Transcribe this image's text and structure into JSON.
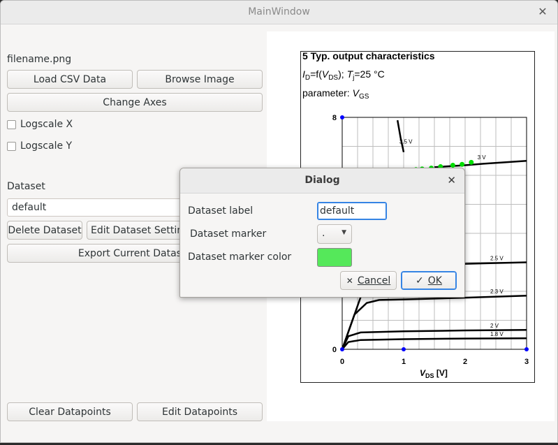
{
  "window": {
    "title": "MainWindow",
    "close_glyph": "✕"
  },
  "left_panel": {
    "filename": "filename.png",
    "load_csv": "Load CSV Data",
    "browse_image": "Browse Image",
    "change_axes": "Change Axes",
    "logscale_x": "Logscale X",
    "logscale_y": "Logscale Y",
    "dataset_label": "Dataset",
    "dataset_value": "default",
    "delete_dataset": "Delete Dataset",
    "edit_dataset_settings": "Edit Dataset Settings",
    "export_current": "Export Current Dataset",
    "clear_datapoints": "Clear Datapoints",
    "edit_datapoints": "Edit Datapoints"
  },
  "figure": {
    "heading": "5 Typ. output characteristics",
    "line2_I": "I",
    "line2_sub_D": "D",
    "line2_mid": "=f(",
    "line2_V": "V",
    "line2_sub_DS": "DS",
    "line2_mid2": "); ",
    "line2_T": "T",
    "line2_sub_j": "j",
    "line2_end": "=25 °C",
    "line3_prefix": "parameter: ",
    "line3_V": "V",
    "line3_sub_GS": "GS",
    "xlabel_V": "V",
    "xlabel_sub": "DS",
    "xlabel_unit": " [V]"
  },
  "chart_data": {
    "type": "line",
    "xlabel": "V DS [V]",
    "ylabel": "",
    "xlim": [
      0,
      3
    ],
    "ylim": [
      0,
      8
    ],
    "x_ticks": [
      "0",
      "1",
      "2",
      "3"
    ],
    "y_ticks": [
      "0",
      "8"
    ],
    "series": [
      {
        "name": "1.8 V",
        "points": [
          [
            0,
            0
          ],
          [
            0.1,
            0.25
          ],
          [
            0.3,
            0.32
          ],
          [
            1,
            0.35
          ],
          [
            2,
            0.37
          ],
          [
            3,
            0.38
          ]
        ]
      },
      {
        "name": "2 V",
        "points": [
          [
            0,
            0
          ],
          [
            0.1,
            0.45
          ],
          [
            0.3,
            0.58
          ],
          [
            1,
            0.62
          ],
          [
            2,
            0.65
          ],
          [
            3,
            0.67
          ]
        ]
      },
      {
        "name": "2.3 V",
        "points": [
          [
            0,
            0
          ],
          [
            0.2,
            1.2
          ],
          [
            0.4,
            1.6
          ],
          [
            0.6,
            1.7
          ],
          [
            1,
            1.72
          ],
          [
            2,
            1.78
          ],
          [
            3,
            1.85
          ]
        ]
      },
      {
        "name": "2.5 V",
        "points": [
          [
            0,
            0
          ],
          [
            0.3,
            1.8
          ],
          [
            0.5,
            2.4
          ],
          [
            1,
            2.9
          ],
          [
            2,
            2.95
          ],
          [
            3,
            3.0
          ]
        ]
      },
      {
        "name": "3 V",
        "points": [
          [
            1.5,
            6.28
          ],
          [
            2,
            6.35
          ],
          [
            2.3,
            6.4
          ],
          [
            3,
            6.5
          ]
        ]
      },
      {
        "name": "3.5 V",
        "points": [
          [
            0.9,
            7.9
          ],
          [
            0.95,
            7.3
          ],
          [
            1.0,
            6.8
          ]
        ]
      }
    ],
    "green_points": [
      [
        1.2,
        6.2
      ],
      [
        1.3,
        6.22
      ],
      [
        1.45,
        6.25
      ],
      [
        1.6,
        6.3
      ],
      [
        1.8,
        6.35
      ],
      [
        1.95,
        6.38
      ],
      [
        2.1,
        6.45
      ]
    ],
    "blue_points": [
      [
        0,
        8
      ],
      [
        0,
        0
      ],
      [
        1,
        0
      ],
      [
        3,
        0
      ]
    ],
    "point_colors": {
      "green": "#00e000",
      "blue": "#0000ff"
    }
  },
  "dialog": {
    "title": "Dialog",
    "close_glyph": "✕",
    "label_label": "Dataset label",
    "label_value": "default",
    "marker_label": "Dataset marker",
    "marker_value": ".",
    "color_label": "Dataset marker color",
    "color_value": "#55e85a",
    "cancel": "Cancel",
    "ok": "OK",
    "cancel_glyph": "✕",
    "ok_glyph": "✓"
  }
}
